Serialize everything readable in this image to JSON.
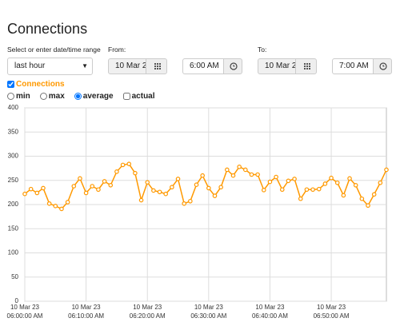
{
  "header": {
    "title": "Connections"
  },
  "range": {
    "label": "Select or enter date/time range",
    "selected": "last hour"
  },
  "from": {
    "label": "From:",
    "date": "10 Mar 2",
    "time": "6:00 AM"
  },
  "to": {
    "label": "To:",
    "date": "10 Mar 2",
    "time": "7:00 AM"
  },
  "options": {
    "series_toggle": "Connections",
    "radios": [
      "min",
      "max",
      "average"
    ],
    "actual": "actual"
  },
  "chart_data": {
    "type": "line",
    "x": [
      0,
      1,
      2,
      3,
      4,
      5,
      6,
      7,
      8,
      9,
      10,
      11,
      12,
      13,
      14,
      15,
      16,
      17,
      18,
      19,
      20,
      21,
      22,
      23,
      24,
      25,
      26,
      27,
      28,
      29,
      30,
      31,
      32,
      33,
      34,
      35,
      36,
      37,
      38,
      39,
      40,
      41,
      42,
      43,
      44,
      45,
      46,
      47,
      48,
      49,
      50,
      51,
      52,
      53,
      54,
      55,
      56,
      57,
      58,
      59
    ],
    "series": [
      {
        "name": "Connections",
        "color": "#ff9900",
        "values": [
          222,
          232,
          224,
          234,
          202,
          197,
          191,
          205,
          238,
          254,
          224,
          238,
          231,
          248,
          240,
          268,
          282,
          284,
          265,
          209,
          246,
          229,
          226,
          222,
          236,
          253,
          202,
          207,
          241,
          260,
          234,
          218,
          236,
          272,
          260,
          278,
          272,
          262,
          262,
          230,
          247,
          257,
          231,
          249,
          253,
          212,
          231,
          231,
          232,
          243,
          255,
          245,
          219,
          254,
          240,
          212,
          198,
          221,
          245,
          272
        ]
      }
    ],
    "xlim": [
      0,
      59
    ],
    "xticks": [
      {
        "value": 0,
        "label": "10 Mar 23\n06:00:00 AM"
      },
      {
        "value": 10,
        "label": "10 Mar 23\n06:10:00 AM"
      },
      {
        "value": 20,
        "label": "10 Mar 23\n06:20:00 AM"
      },
      {
        "value": 30,
        "label": "10 Mar 23\n06:30:00 AM"
      },
      {
        "value": 40,
        "label": "10 Mar 23\n06:40:00 AM"
      },
      {
        "value": 50,
        "label": "10 Mar 23\n06:50:00 AM"
      }
    ],
    "ylim": [
      0,
      400
    ],
    "yticks": [
      0,
      50,
      100,
      150,
      200,
      250,
      300,
      350,
      400
    ],
    "grid": true
  }
}
